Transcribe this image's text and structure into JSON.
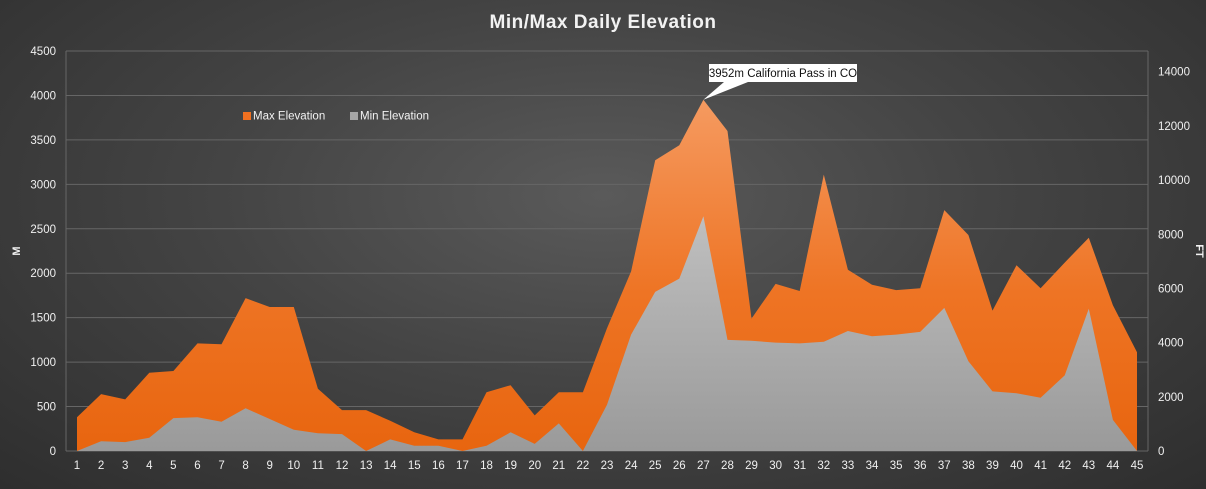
{
  "chart_data": {
    "type": "area",
    "title": "Min/Max Daily Elevation",
    "ylabel": "M",
    "y2label": "FT",
    "ylim": [
      0,
      4500
    ],
    "yticks": [
      0,
      500,
      1000,
      1500,
      2000,
      2500,
      3000,
      3500,
      4000,
      4500
    ],
    "y2lim": [
      0,
      14764
    ],
    "y2ticks": [
      0,
      2000,
      4000,
      6000,
      8000,
      10000,
      12000,
      14000
    ],
    "categories": [
      "1",
      "2",
      "3",
      "4",
      "5",
      "6",
      "7",
      "8",
      "9",
      "10",
      "11",
      "12",
      "13",
      "14",
      "15",
      "16",
      "17",
      "18",
      "19",
      "20",
      "21",
      "22",
      "23",
      "24",
      "25",
      "26",
      "27",
      "28",
      "29",
      "30",
      "31",
      "32",
      "33",
      "34",
      "35",
      "36",
      "37",
      "38",
      "39",
      "40",
      "41",
      "42",
      "43",
      "44",
      "45"
    ],
    "series": [
      {
        "name": "Max Elevation",
        "color": "#f07020",
        "values": [
          380,
          640,
          580,
          880,
          900,
          1210,
          1200,
          1720,
          1620,
          1620,
          700,
          460,
          460,
          340,
          210,
          130,
          130,
          660,
          740,
          400,
          660,
          660,
          1380,
          2020,
          3270,
          3440,
          3952,
          3600,
          1490,
          1880,
          1800,
          3110,
          2040,
          1870,
          1810,
          1830,
          2710,
          2430,
          1580,
          2090,
          1830,
          2120,
          2400,
          1640,
          1110
        ]
      },
      {
        "name": "Min Elevation",
        "color": "#a6a6a6",
        "values": [
          0,
          110,
          100,
          150,
          370,
          380,
          330,
          480,
          360,
          240,
          200,
          190,
          0,
          130,
          60,
          60,
          0,
          60,
          210,
          80,
          310,
          0,
          520,
          1310,
          1790,
          1940,
          2640,
          1250,
          1240,
          1220,
          1210,
          1230,
          1350,
          1290,
          1310,
          1340,
          1610,
          1010,
          670,
          650,
          600,
          850,
          1600,
          350,
          0
        ]
      }
    ],
    "legend_position": "top-left",
    "grid": true,
    "annotation": {
      "text": "3952m California Pass in CO",
      "category": "27",
      "value": 3952
    }
  }
}
